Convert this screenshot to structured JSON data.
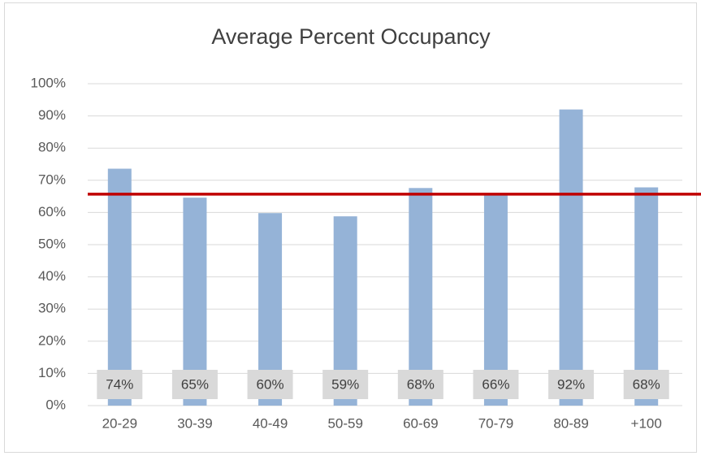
{
  "chart_data": {
    "type": "bar",
    "title": "Average Percent Occupancy",
    "categories": [
      "20-29",
      "30-39",
      "40-49",
      "50-59",
      "60-69",
      "70-79",
      "80-89",
      "+100"
    ],
    "values": [
      73.6,
      64.6,
      59.8,
      58.8,
      67.6,
      65.6,
      92,
      67.8
    ],
    "value_labels": [
      "74%",
      "65%",
      "60%",
      "59%",
      "68%",
      "66%",
      "92%",
      "68%"
    ],
    "color": "#95b3d7",
    "reference_line": {
      "value": 65.7,
      "color": "#c00000"
    },
    "ylim": [
      0,
      100
    ],
    "yticks": [
      {
        "value": 0,
        "label": "0%"
      },
      {
        "value": 10,
        "label": "10%"
      },
      {
        "value": 20,
        "label": "20%"
      },
      {
        "value": 30,
        "label": "30%"
      },
      {
        "value": 40,
        "label": "40%"
      },
      {
        "value": 50,
        "label": "50%"
      },
      {
        "value": 60,
        "label": "60%"
      },
      {
        "value": 70,
        "label": "70%"
      },
      {
        "value": 80,
        "label": "80%"
      },
      {
        "value": 90,
        "label": "90%"
      },
      {
        "value": 100,
        "label": "100%"
      }
    ],
    "grid": true
  }
}
